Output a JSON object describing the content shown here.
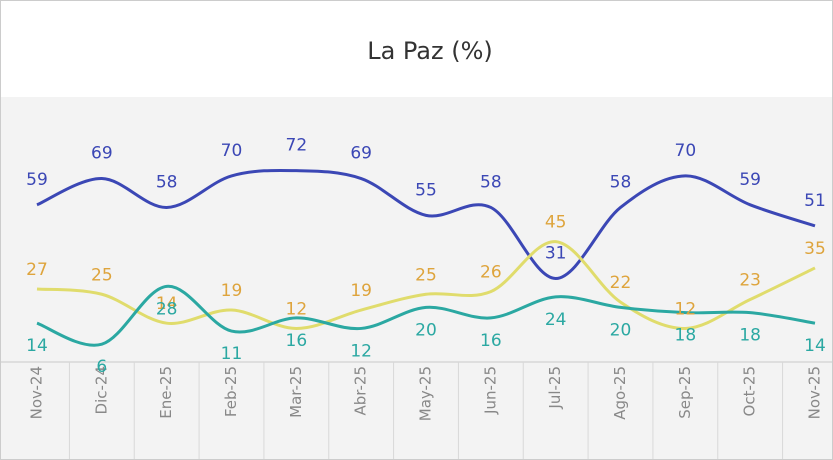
{
  "chart_data": {
    "type": "line",
    "title": "La Paz (%)",
    "categories": [
      "Nov-24",
      "Dic-24",
      "Ene-25",
      "Feb-25",
      "Mar-25",
      "Abr-25",
      "May-25",
      "Jun-25",
      "Jul-25",
      "Ago-25",
      "Sep-25",
      "Oct-25",
      "Nov-25"
    ],
    "series": [
      {
        "color": "#3b47b5",
        "label_color": "#3b47b5",
        "values": [
          59,
          69,
          58,
          70,
          72,
          69,
          55,
          58,
          31,
          58,
          70,
          59,
          51
        ]
      },
      {
        "color": "#e0dc6c",
        "label_color": "#dea43c",
        "values": [
          27,
          25,
          14,
          19,
          12,
          19,
          25,
          26,
          45,
          22,
          12,
          23,
          35
        ]
      },
      {
        "color": "#2ba8a2",
        "label_color": "#2ba8a2",
        "values": [
          14,
          6,
          28,
          11,
          16,
          12,
          20,
          16,
          24,
          20,
          18,
          18,
          14
        ]
      }
    ],
    "ylim": [
      0,
      100
    ],
    "smooth": true
  }
}
